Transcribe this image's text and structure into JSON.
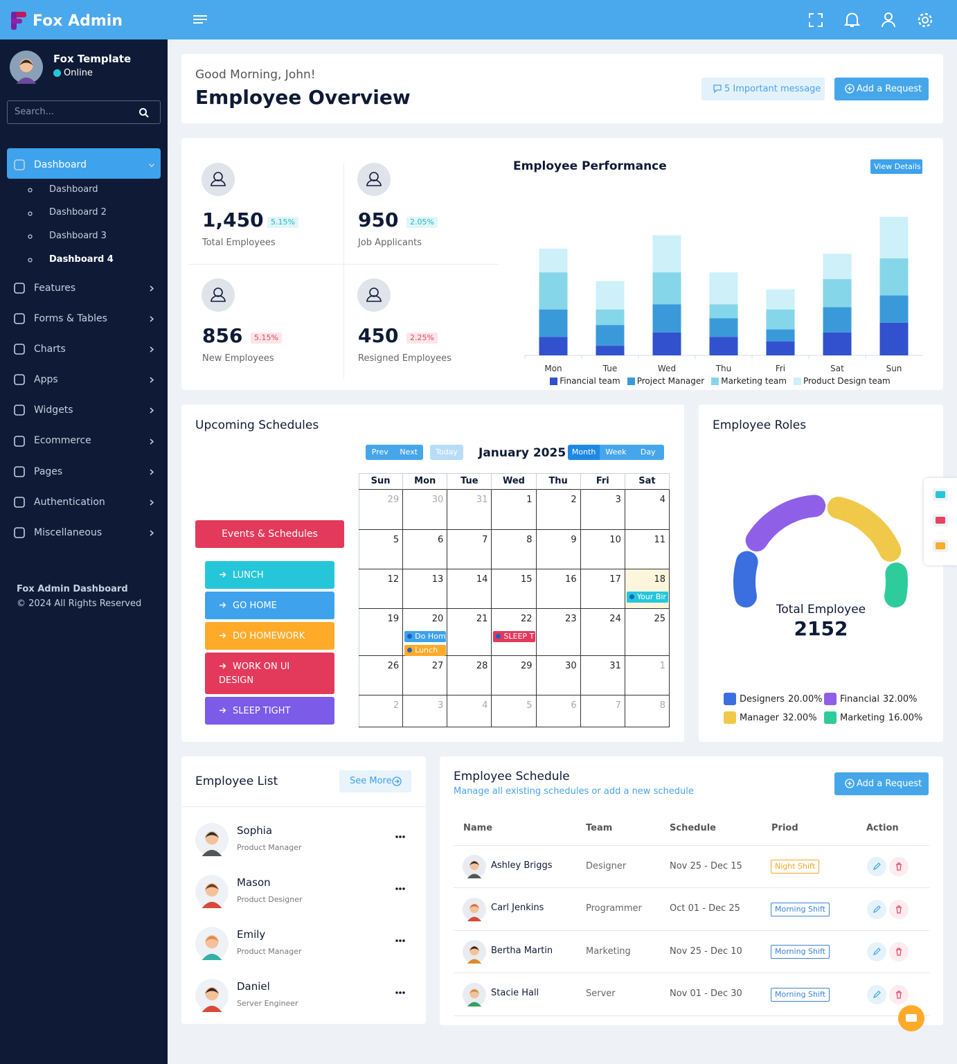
{
  "header": {
    "brand": "Fox Admin"
  },
  "sidebar": {
    "profile_name": "Fox Template",
    "status": "Online",
    "search_placeholder": "Search...",
    "menu": [
      {
        "label": "Dashboard",
        "children": [
          "Dashboard",
          "Dashboard 2",
          "Dashboard 3",
          "Dashboard 4"
        ]
      },
      {
        "label": "Features"
      },
      {
        "label": "Forms & Tables"
      },
      {
        "label": "Charts"
      },
      {
        "label": "Apps"
      },
      {
        "label": "Widgets"
      },
      {
        "label": "Ecommerce"
      },
      {
        "label": "Pages"
      },
      {
        "label": "Authentication"
      },
      {
        "label": "Miscellaneous"
      }
    ],
    "footer_title": "Fox Admin Dashboard",
    "footer_text": "© 2024 All Rights Reserved"
  },
  "greeting": {
    "subtitle": "Good Morning, John!",
    "title": "Employee Overview",
    "message_button": "5 Important message",
    "request_button": "Add a Request"
  },
  "stats": [
    {
      "value": "1,450",
      "change": "5.15%",
      "label": "Total Employees",
      "color": "#1bb8c9"
    },
    {
      "value": "950",
      "change": "2.05%",
      "label": "Job Applicants",
      "color": "#1bb8c9"
    },
    {
      "value": "856",
      "change": "5.15%",
      "label": "New Employees",
      "color": "#e6455f"
    },
    {
      "value": "450",
      "change": "2.25%",
      "label": "Resigned Employees",
      "color": "#e6455f"
    }
  ],
  "chart_data": [
    {
      "type": "bar",
      "stacked": true,
      "title": "Employee Performance",
      "action_label": "View Details",
      "categories": [
        "Mon",
        "Tue",
        "Wed",
        "Thu",
        "Fri",
        "Sat",
        "Sun"
      ],
      "ylim": [
        0,
        200
      ],
      "series": [
        {
          "name": "Financial team",
          "color": "#3151cf",
          "values": [
            25,
            13,
            31,
            25,
            19,
            31,
            44
          ]
        },
        {
          "name": "Project Manager",
          "color": "#3a9ad9",
          "values": [
            37,
            28,
            38,
            25,
            16,
            34,
            37
          ]
        },
        {
          "name": "Marketing team",
          "color": "#86d6ea",
          "values": [
            50,
            21,
            43,
            19,
            27,
            38,
            50
          ]
        },
        {
          "name": "Product Design team",
          "color": "#cdf0f9",
          "values": [
            32,
            38,
            50,
            43,
            27,
            34,
            56
          ]
        }
      ]
    },
    {
      "type": "pie",
      "title": "Employee Roles",
      "center_label": "Total Employee",
      "center_value": "2152",
      "categories": [
        "Designers",
        "Financial",
        "Manager",
        "Marketing"
      ],
      "values": [
        20,
        32,
        32,
        16
      ],
      "value_labels": [
        "20.00%",
        "32.00%",
        "32.00%",
        "16.00%"
      ],
      "colors": [
        "#3b6fe0",
        "#8f5fe8",
        "#f0c94a",
        "#2ecc9a"
      ]
    }
  ],
  "schedules": {
    "title": "Upcoming Schedules",
    "events_button": "Events & Schedules",
    "events": [
      {
        "label": "LUNCH",
        "color": "#26c6da"
      },
      {
        "label": "GO HOME",
        "color": "#3ea2ec"
      },
      {
        "label": "DO HOMEWORK",
        "color": "#ffaa29"
      },
      {
        "label": "WORK ON UI DESIGN",
        "color": "#e3395a"
      },
      {
        "label": "SLEEP TIGHT",
        "color": "#7b5be8"
      }
    ],
    "calendar": {
      "month": "January 2025",
      "nav": [
        "Prev",
        "Next"
      ],
      "today": "Today",
      "views": [
        "Month",
        "Week",
        "Day"
      ],
      "weekdays": [
        "Sun",
        "Mon",
        "Tue",
        "Wed",
        "Thu",
        "Fri",
        "Sat"
      ],
      "weeks": [
        [
          29,
          30,
          31,
          1,
          2,
          3,
          4
        ],
        [
          5,
          6,
          7,
          8,
          9,
          10,
          11
        ],
        [
          12,
          13,
          14,
          15,
          16,
          17,
          18
        ],
        [
          19,
          20,
          21,
          22,
          23,
          24,
          25
        ],
        [
          26,
          27,
          28,
          29,
          30,
          31,
          1
        ],
        [
          2,
          3,
          4,
          5,
          6,
          7,
          8
        ]
      ],
      "events": [
        {
          "day": 18,
          "label": "Your Bir",
          "color": "#26c6da"
        },
        {
          "day": 20,
          "label": "Do Hom",
          "color": "#3ea2ec"
        },
        {
          "day": 20,
          "label": "Lunch",
          "color": "#ffaa29"
        },
        {
          "day": 22,
          "label": "SLEEP T",
          "color": "#e3395a"
        }
      ]
    }
  },
  "employee_list": {
    "title": "Employee List",
    "see_more": "See More",
    "employees": [
      {
        "name": "Sophia",
        "role": "Product Manager"
      },
      {
        "name": "Mason",
        "role": "Product Designer"
      },
      {
        "name": "Emily",
        "role": "Product Manager"
      },
      {
        "name": "Daniel",
        "role": "Server Engineer"
      }
    ]
  },
  "employee_schedule": {
    "title": "Employee Schedule",
    "subtitle": "Manage all existing schedules or add a new schedule",
    "button": "Add a Request",
    "columns": [
      "Name",
      "Team",
      "Schedule",
      "Priod",
      "Action"
    ],
    "rows": [
      {
        "name": "Ashley Briggs",
        "team": "Designer",
        "schedule": "Nov 25 - Dec 15",
        "period": "Night Shift",
        "color": "#f5a623"
      },
      {
        "name": "Carl Jenkins",
        "team": "Programmer",
        "schedule": "Oct 01 - Dec 25",
        "period": "Morning Shift",
        "color": "#3b82d6"
      },
      {
        "name": "Bertha Martin",
        "team": "Marketing",
        "schedule": "Nov 25 - Dec 10",
        "period": "Morning Shift",
        "color": "#3b82d6"
      },
      {
        "name": "Stacie Hall",
        "team": "Server",
        "schedule": "Nov 01 - Dec 30",
        "period": "Morning Shift",
        "color": "#3b82d6"
      }
    ]
  }
}
